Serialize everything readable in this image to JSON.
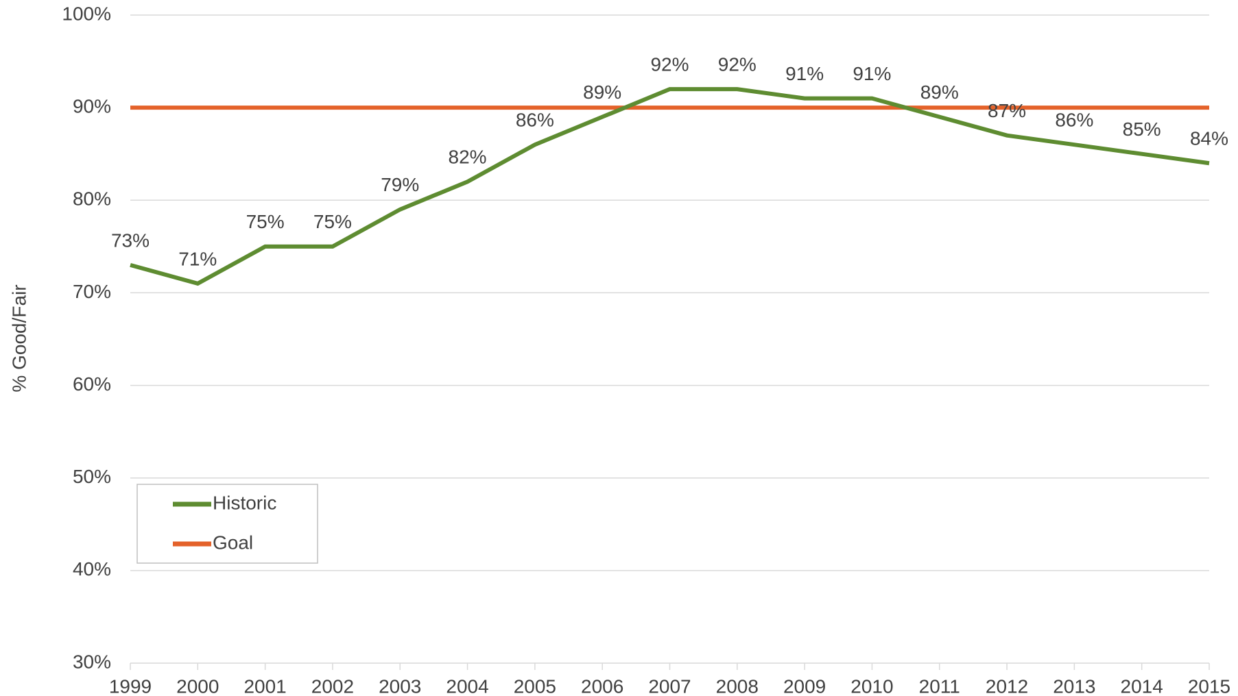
{
  "chart_data": {
    "type": "line",
    "y_label": "% Good/Fair",
    "x": [
      1999,
      2000,
      2001,
      2002,
      2003,
      2004,
      2005,
      2006,
      2007,
      2008,
      2009,
      2010,
      2011,
      2012,
      2013,
      2014,
      2015
    ],
    "xlim": [
      1999,
      2015
    ],
    "xticks": [
      1999,
      2000,
      2001,
      2002,
      2003,
      2004,
      2005,
      2006,
      2007,
      2008,
      2009,
      2010,
      2011,
      2012,
      2013,
      2014,
      2015
    ],
    "ylim": [
      30,
      100
    ],
    "yticks": [
      {
        "value": 30,
        "label": "30%"
      },
      {
        "value": 40,
        "label": "40%"
      },
      {
        "value": 50,
        "label": "50%"
      },
      {
        "value": 60,
        "label": "60%"
      },
      {
        "value": 70,
        "label": "70%"
      },
      {
        "value": 80,
        "label": "80%"
      },
      {
        "value": 90,
        "label": "90%"
      },
      {
        "value": 100,
        "label": "100%"
      }
    ],
    "grid": true,
    "legend": "lower left",
    "series": [
      {
        "name": "Historic",
        "color": "#5e8c31",
        "values": [
          73,
          71,
          75,
          75,
          79,
          82,
          86,
          89,
          92,
          92,
          91,
          91,
          89,
          87,
          86,
          85,
          84
        ],
        "value_labels": [
          "73%",
          "71%",
          "75%",
          "75%",
          "79%",
          "82%",
          "86%",
          "89%",
          "92%",
          "92%",
          "91%",
          "91%",
          "89%",
          "87%",
          "86%",
          "85%",
          "84%"
        ]
      },
      {
        "name": "Goal",
        "color": "#e4622a",
        "values": [
          90,
          90,
          90,
          90,
          90,
          90,
          90,
          90,
          90,
          90,
          90,
          90,
          90,
          90,
          90,
          90,
          90
        ]
      }
    ]
  }
}
